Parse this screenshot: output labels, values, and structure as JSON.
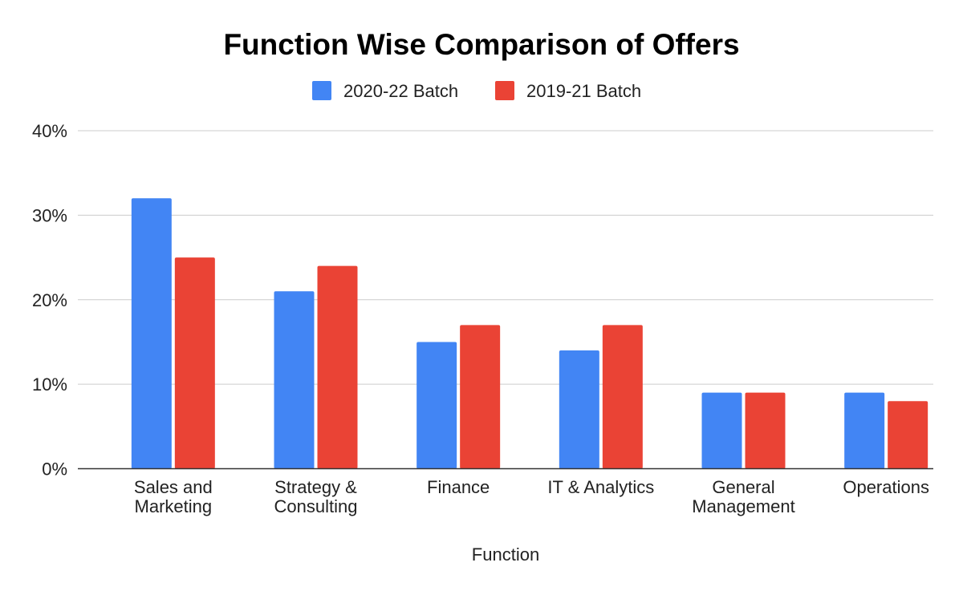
{
  "chart_data": {
    "type": "bar",
    "title": "Function Wise Comparison of Offers",
    "xlabel": "Function",
    "ylabel": "",
    "ylim": [
      0,
      40
    ],
    "y_ticks": [
      "0%",
      "10%",
      "20%",
      "30%",
      "40%"
    ],
    "y_tick_values": [
      0,
      10,
      20,
      30,
      40
    ],
    "grid": true,
    "legend_position": "top-center",
    "categories": [
      [
        "Sales and",
        "Marketing"
      ],
      [
        "Strategy &",
        "Consulting"
      ],
      [
        "Finance"
      ],
      [
        "IT & Analytics"
      ],
      [
        "General",
        "Management"
      ],
      [
        "Operations"
      ]
    ],
    "series": [
      {
        "name": "2020-22 Batch",
        "color": "#4285f4",
        "values": [
          32,
          21,
          15,
          14,
          9,
          9
        ]
      },
      {
        "name": "2019-21 Batch",
        "color": "#ea4335",
        "values": [
          25,
          24,
          17,
          17,
          9,
          8
        ]
      }
    ]
  }
}
